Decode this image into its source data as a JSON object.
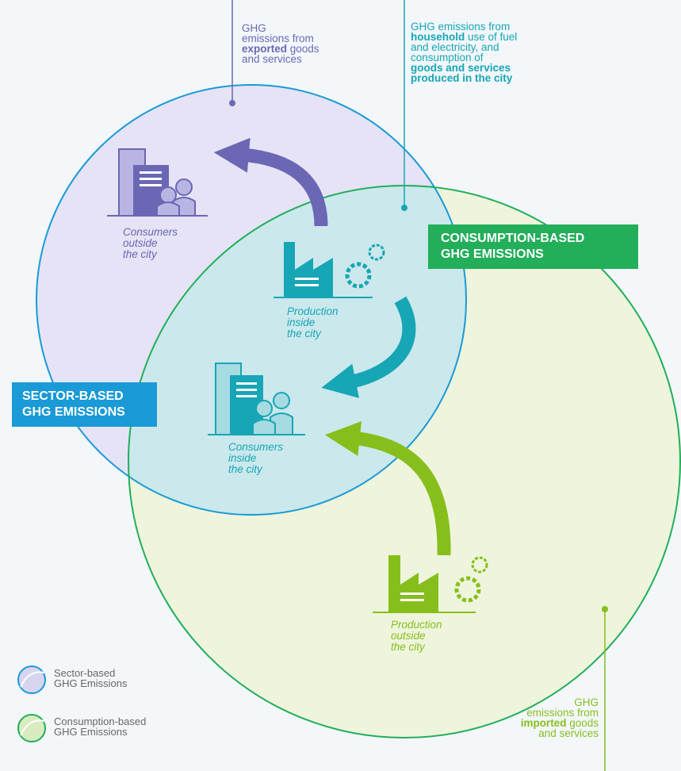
{
  "annotations": [
    {
      "lines": [
        [
          {
            "text": "GHG"
          }
        ],
        [
          {
            "text": "emissions from"
          }
        ],
        [
          {
            "text": "exported",
            "bold": true
          },
          {
            "text": " goods"
          }
        ],
        [
          {
            "text": "and services"
          }
        ]
      ]
    },
    {
      "lines": [
        [
          {
            "text": "GHG emissions from"
          }
        ],
        [
          {
            "text": "household",
            "bold": true
          },
          {
            "text": " use of fuel"
          }
        ],
        [
          {
            "text": "and electricity, and"
          }
        ],
        [
          {
            "text": "consumption of"
          }
        ],
        [
          {
            "text": "goods and services",
            "bold": true
          }
        ],
        [
          {
            "text": "produced in the city",
            "bold": true
          }
        ]
      ]
    },
    {
      "lines": [
        [
          {
            "text": "GHG"
          }
        ],
        [
          {
            "text": "emissions from"
          }
        ],
        [
          {
            "text": "imported",
            "bold": true
          },
          {
            "text": " goods"
          }
        ],
        [
          {
            "text": "and services"
          }
        ]
      ]
    }
  ],
  "labels": {
    "sector": [
      "SECTOR-BASED",
      "GHG EMISSIONS"
    ],
    "consumption": [
      "CONSUMPTION-BASED",
      "GHG EMISSIONS"
    ]
  },
  "nodes": {
    "consumers_outside": [
      "Consumers",
      "outside",
      "the city"
    ],
    "production_inside": [
      "Production",
      "inside",
      "the city"
    ],
    "consumers_inside": [
      "Consumers",
      "inside",
      "the city"
    ],
    "production_outside": [
      "Production",
      "outside",
      "the city"
    ]
  },
  "legend": [
    [
      "Sector-based",
      "GHG Emissions"
    ],
    [
      "Consumption-based",
      "GHG Emissions"
    ]
  ]
}
